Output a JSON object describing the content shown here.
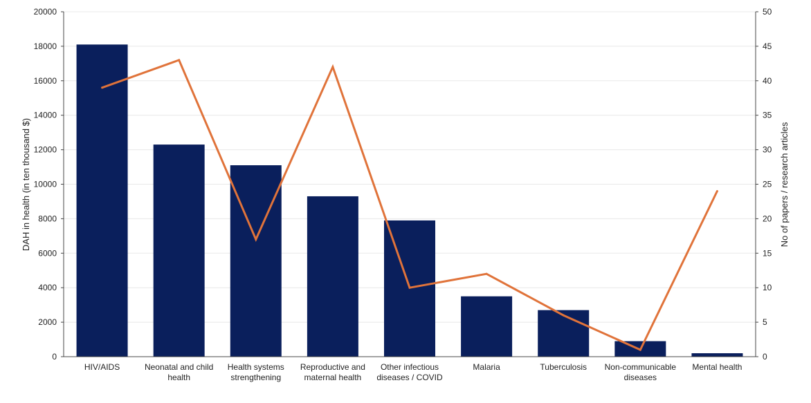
{
  "chart_data": {
    "type": "bar+line",
    "categories": [
      [
        "HIV/AIDS"
      ],
      [
        "Neonatal and child",
        "health"
      ],
      [
        "Health systems",
        "strengthening"
      ],
      [
        "Reproductive and",
        "maternal health"
      ],
      [
        "Other infectious",
        "diseases / COVID"
      ],
      [
        "Malaria"
      ],
      [
        "Tuberculosis"
      ],
      [
        "Non-communicable",
        "diseases"
      ],
      [
        "Mental health"
      ]
    ],
    "series": [
      {
        "name": "DAH in health",
        "kind": "bar",
        "axis": "left",
        "color": "#0a1f5c",
        "values": [
          18100,
          12300,
          11100,
          9300,
          7900,
          3500,
          2700,
          900,
          200
        ]
      },
      {
        "name": "No of papers / research articles",
        "kind": "line",
        "axis": "right",
        "color": "#e0733a",
        "values": [
          39,
          43,
          17,
          42,
          10,
          12,
          6,
          1,
          24
        ]
      }
    ],
    "ylabel_left": "DAH in health (in ten thousand $)",
    "ylabel_right": "No of papers / research articles",
    "ylim_left": [
      0,
      20000
    ],
    "yticks_left": [
      0,
      2000,
      4000,
      6000,
      8000,
      10000,
      12000,
      14000,
      16000,
      18000,
      20000
    ],
    "ylim_right": [
      0,
      50
    ],
    "yticks_right": [
      0,
      5,
      10,
      15,
      20,
      25,
      30,
      35,
      40,
      45,
      50
    ],
    "grid": true
  }
}
